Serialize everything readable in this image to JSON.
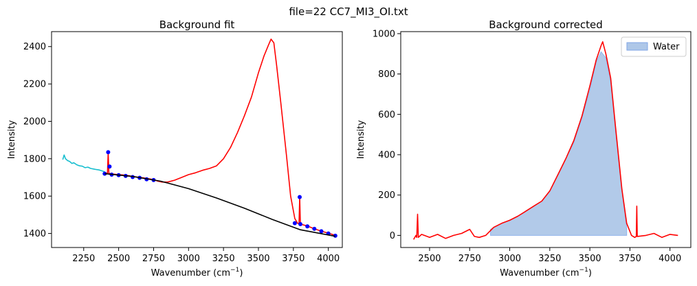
{
  "figure_title": "file=22 CC7_MI3_OI.txt",
  "chart_data": [
    {
      "type": "line",
      "title": "Background fit",
      "xlabel": "Wavenumber (cm",
      "xlabel_sup": "−1",
      "xlabel_close": ")",
      "ylabel": "Intensity",
      "xlim": [
        2020,
        4100
      ],
      "ylim": [
        1325,
        2480
      ],
      "xticks": [
        2250,
        2500,
        2750,
        3000,
        3250,
        3500,
        3750,
        4000
      ],
      "yticks": [
        1400,
        1600,
        1800,
        2000,
        2200,
        2400
      ],
      "grid": false,
      "series": [
        {
          "role": "cyan-segment",
          "color": "#17becf",
          "points": [
            [
              2100,
              1795
            ],
            [
              2110,
              1820
            ],
            [
              2120,
              1800
            ],
            [
              2135,
              1790
            ],
            [
              2150,
              1785
            ],
            [
              2165,
              1775
            ],
            [
              2180,
              1778
            ],
            [
              2200,
              1768
            ],
            [
              2220,
              1762
            ],
            [
              2240,
              1760
            ],
            [
              2260,
              1752
            ],
            [
              2280,
              1755
            ],
            [
              2300,
              1748
            ],
            [
              2320,
              1745
            ],
            [
              2340,
              1742
            ],
            [
              2360,
              1740
            ],
            [
              2380,
              1735
            ],
            [
              2400,
              1730
            ]
          ]
        },
        {
          "role": "spectrum",
          "color": "#ff0000",
          "points": [
            [
              2400,
              1725
            ],
            [
              2420,
              1722
            ],
            [
              2425,
              1835
            ],
            [
              2430,
              1722
            ],
            [
              2460,
              1718
            ],
            [
              2500,
              1715
            ],
            [
              2550,
              1712
            ],
            [
              2600,
              1705
            ],
            [
              2650,
              1700
            ],
            [
              2700,
              1695
            ],
            [
              2750,
              1688
            ],
            [
              2780,
              1680
            ],
            [
              2810,
              1675
            ],
            [
              2850,
              1675
            ],
            [
              2900,
              1685
            ],
            [
              2950,
              1700
            ],
            [
              3000,
              1715
            ],
            [
              3050,
              1725
            ],
            [
              3100,
              1738
            ],
            [
              3150,
              1748
            ],
            [
              3200,
              1762
            ],
            [
              3250,
              1800
            ],
            [
              3300,
              1860
            ],
            [
              3350,
              1940
            ],
            [
              3400,
              2030
            ],
            [
              3450,
              2130
            ],
            [
              3500,
              2260
            ],
            [
              3540,
              2350
            ],
            [
              3570,
              2405
            ],
            [
              3590,
              2440
            ],
            [
              3610,
              2420
            ],
            [
              3630,
              2300
            ],
            [
              3660,
              2100
            ],
            [
              3700,
              1820
            ],
            [
              3730,
              1600
            ],
            [
              3760,
              1480
            ],
            [
              3780,
              1455
            ],
            [
              3790,
              1452
            ],
            [
              3795,
              1595
            ],
            [
              3800,
              1450
            ],
            [
              3850,
              1440
            ],
            [
              3900,
              1425
            ],
            [
              3950,
              1412
            ],
            [
              4000,
              1402
            ],
            [
              4050,
              1390
            ]
          ]
        },
        {
          "role": "baseline-points",
          "color": "#0000ff",
          "points": [
            [
              2400,
              1720
            ],
            [
              2425,
              1835
            ],
            [
              2435,
              1758
            ],
            [
              2450,
              1715
            ],
            [
              2500,
              1712
            ],
            [
              2550,
              1708
            ],
            [
              2600,
              1702
            ],
            [
              2650,
              1698
            ],
            [
              2700,
              1690
            ],
            [
              2750,
              1686
            ],
            [
              3760,
              1455
            ],
            [
              3795,
              1595
            ],
            [
              3800,
              1450
            ],
            [
              3850,
              1438
            ],
            [
              3900,
              1425
            ],
            [
              3950,
              1412
            ],
            [
              4000,
              1400
            ],
            [
              4050,
              1388
            ]
          ]
        },
        {
          "role": "background-fit",
          "color": "#000000",
          "points": [
            [
              2400,
              1720
            ],
            [
              2600,
              1705
            ],
            [
              2800,
              1680
            ],
            [
              3000,
              1640
            ],
            [
              3200,
              1590
            ],
            [
              3400,
              1535
            ],
            [
              3600,
              1475
            ],
            [
              3800,
              1420
            ],
            [
              4050,
              1385
            ]
          ]
        }
      ]
    },
    {
      "type": "area",
      "title": "Background corrected",
      "xlabel": "Wavenumber (cm",
      "xlabel_sup": "−1",
      "xlabel_close": ")",
      "ylabel": "Intensity",
      "xlim": [
        2320,
        4130
      ],
      "ylim": [
        -60,
        1010
      ],
      "xticks": [
        2500,
        2750,
        3000,
        3250,
        3500,
        3750,
        4000
      ],
      "yticks": [
        0,
        200,
        400,
        600,
        800,
        1000
      ],
      "grid": false,
      "legend": {
        "position": "top-right",
        "entries": [
          "Water"
        ]
      },
      "series": [
        {
          "name": "Water",
          "role": "fill",
          "color": "#aec7e8",
          "points": [
            [
              2880,
              0
            ],
            [
              2880,
              30
            ],
            [
              2950,
              60
            ],
            [
              3000,
              75
            ],
            [
              3050,
              95
            ],
            [
              3100,
              120
            ],
            [
              3150,
              145
            ],
            [
              3200,
              170
            ],
            [
              3250,
              220
            ],
            [
              3300,
              300
            ],
            [
              3350,
              380
            ],
            [
              3400,
              460
            ],
            [
              3450,
              580
            ],
            [
              3500,
              720
            ],
            [
              3540,
              860
            ],
            [
              3570,
              910
            ],
            [
              3600,
              880
            ],
            [
              3630,
              760
            ],
            [
              3660,
              520
            ],
            [
              3700,
              220
            ],
            [
              3730,
              40
            ],
            [
              3730,
              0
            ]
          ]
        },
        {
          "role": "spectrum",
          "color": "#ff0000",
          "points": [
            [
              2400,
              -20
            ],
            [
              2415,
              0
            ],
            [
              2420,
              -10
            ],
            [
              2425,
              105
            ],
            [
              2430,
              -10
            ],
            [
              2450,
              5
            ],
            [
              2500,
              -10
            ],
            [
              2550,
              5
            ],
            [
              2600,
              -15
            ],
            [
              2650,
              0
            ],
            [
              2700,
              10
            ],
            [
              2750,
              30
            ],
            [
              2780,
              -5
            ],
            [
              2810,
              -10
            ],
            [
              2850,
              0
            ],
            [
              2900,
              40
            ],
            [
              2950,
              60
            ],
            [
              3000,
              75
            ],
            [
              3050,
              95
            ],
            [
              3100,
              120
            ],
            [
              3150,
              145
            ],
            [
              3200,
              170
            ],
            [
              3250,
              220
            ],
            [
              3300,
              300
            ],
            [
              3350,
              380
            ],
            [
              3400,
              470
            ],
            [
              3450,
              590
            ],
            [
              3500,
              740
            ],
            [
              3540,
              870
            ],
            [
              3570,
              940
            ],
            [
              3580,
              960
            ],
            [
              3600,
              900
            ],
            [
              3630,
              780
            ],
            [
              3660,
              540
            ],
            [
              3700,
              230
            ],
            [
              3730,
              60
            ],
            [
              3760,
              0
            ],
            [
              3780,
              -10
            ],
            [
              3790,
              -5
            ],
            [
              3793,
              145
            ],
            [
              3796,
              -5
            ],
            [
              3850,
              0
            ],
            [
              3900,
              10
            ],
            [
              3950,
              -10
            ],
            [
              4000,
              5
            ],
            [
              4050,
              0
            ]
          ]
        }
      ]
    }
  ]
}
